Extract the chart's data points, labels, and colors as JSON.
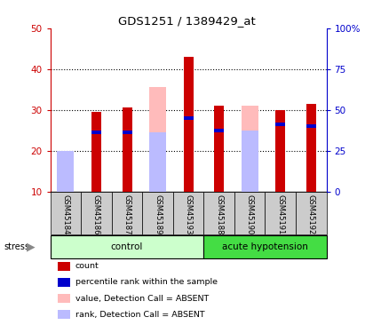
{
  "title": "GDS1251 / 1389429_at",
  "samples": [
    "GSM45184",
    "GSM45186",
    "GSM45187",
    "GSM45189",
    "GSM45193",
    "GSM45188",
    "GSM45190",
    "GSM45191",
    "GSM45192"
  ],
  "red_bars": [
    0,
    29.5,
    30.5,
    0,
    43.0,
    31.0,
    0,
    30.0,
    31.5
  ],
  "blue_bars": [
    0,
    24.5,
    24.5,
    0,
    28.0,
    25.0,
    0,
    26.5,
    26.0
  ],
  "pink_bars": [
    19.0,
    0,
    0,
    35.5,
    0,
    0,
    31.0,
    0,
    0
  ],
  "lavender_bars": [
    20.0,
    0,
    0,
    24.5,
    0,
    0,
    25.0,
    0,
    0
  ],
  "ylim_left": [
    10,
    50
  ],
  "ylim_right": [
    0,
    100
  ],
  "yticks_left": [
    10,
    20,
    30,
    40,
    50
  ],
  "yticks_right": [
    0,
    25,
    50,
    75,
    100
  ],
  "ytick_labels_right": [
    "0",
    "25",
    "50",
    "75",
    "100%"
  ],
  "left_axis_color": "#cc0000",
  "right_axis_color": "#0000cc",
  "group_label_control": "control",
  "group_label_acute": "acute hypotension",
  "stress_label": "stress",
  "legend_items": [
    {
      "label": "count",
      "color": "#cc0000"
    },
    {
      "label": "percentile rank within the sample",
      "color": "#0000cc"
    },
    {
      "label": "value, Detection Call = ABSENT",
      "color": "#ffbbbb"
    },
    {
      "label": "rank, Detection Call = ABSENT",
      "color": "#bbbbff"
    }
  ],
  "control_bg_color": "#ccffcc",
  "acute_bg_color": "#44dd44",
  "tick_bg_color": "#cccccc",
  "fig_bg": "#ffffff",
  "n_control": 5,
  "n_acute": 4
}
